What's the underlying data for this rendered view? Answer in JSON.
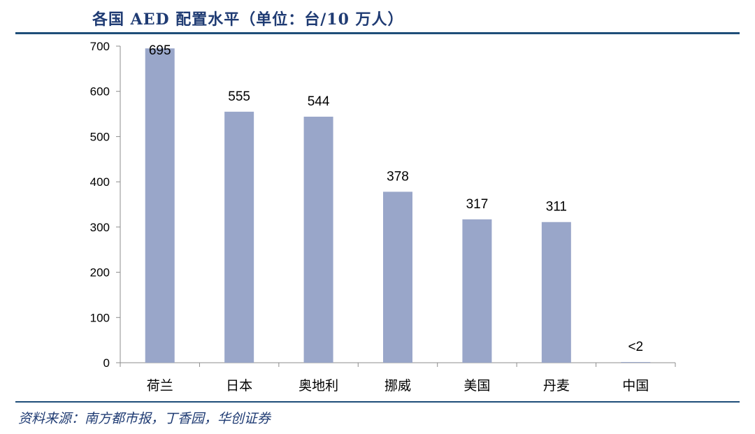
{
  "title": "各国 AED 配置水平（单位：台/10 万人）",
  "source": "资料来源：南方都市报，丁香园，华创证券",
  "chart_data": {
    "type": "bar",
    "title": "各国 AED 配置水平（单位：台/10 万人）",
    "xlabel": "",
    "ylabel": "",
    "categories": [
      "荷兰",
      "日本",
      "奥地利",
      "挪威",
      "美国",
      "丹麦",
      "中国"
    ],
    "values": [
      695,
      555,
      544,
      378,
      317,
      311,
      1
    ],
    "data_labels": [
      "695",
      "555",
      "544",
      "378",
      "317",
      "311",
      "<2"
    ],
    "ylim": [
      0,
      700
    ],
    "yticks": [
      0,
      100,
      200,
      300,
      400,
      500,
      600,
      700
    ],
    "grid": false,
    "bar_color": "#99a6c9"
  }
}
